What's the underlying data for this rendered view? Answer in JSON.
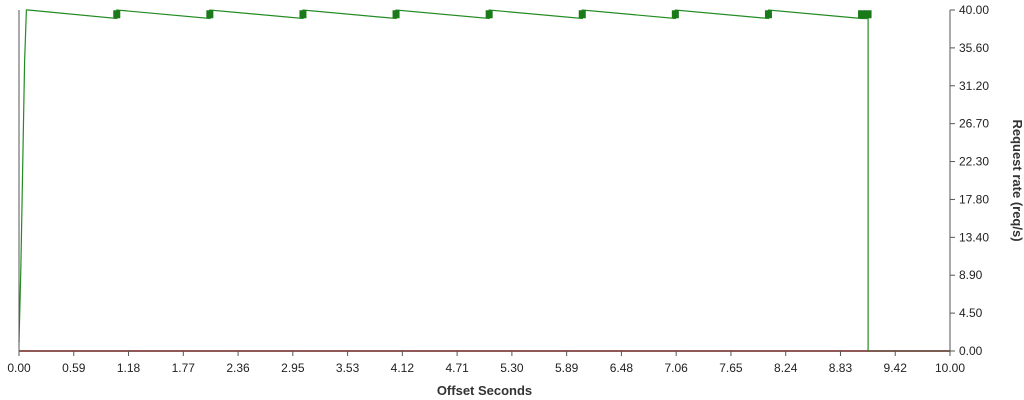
{
  "chart_data": {
    "type": "line",
    "title": "",
    "xlabel": "Offset Seconds",
    "ylabel": "Request rate (req/s)",
    "xlim": [
      0,
      10
    ],
    "ylim": [
      0,
      40
    ],
    "x_ticks": [
      "0.00",
      "0.59",
      "1.18",
      "1.77",
      "2.36",
      "2.95",
      "3.53",
      "4.12",
      "4.71",
      "5.30",
      "5.89",
      "6.48",
      "7.06",
      "7.65",
      "8.24",
      "8.83",
      "9.42",
      "10.00"
    ],
    "y_ticks": [
      "0.00",
      "4.50",
      "8.90",
      "13.40",
      "17.80",
      "22.30",
      "26.70",
      "31.20",
      "35.60",
      "40.00"
    ],
    "grid": false,
    "series": [
      {
        "color": "#228b22",
        "marker_color": "#1a7a1a",
        "x": [
          0.0,
          0.02,
          0.06,
          0.08,
          0.1,
          1.05,
          1.05,
          2.05,
          2.05,
          3.05,
          3.05,
          4.05,
          4.05,
          5.05,
          5.05,
          6.05,
          6.05,
          7.05,
          7.05,
          8.05,
          8.05,
          9.05,
          9.12,
          9.12,
          10.0
        ],
        "y": [
          1.0,
          10.0,
          34.0,
          40.0,
          40.0,
          39.0,
          40.0,
          39.0,
          40.0,
          39.0,
          40.0,
          39.0,
          40.0,
          39.0,
          40.0,
          39.0,
          40.0,
          39.0,
          40.0,
          39.0,
          40.0,
          39.0,
          39.0,
          0.0,
          0.0
        ],
        "markers_x": [
          1.05,
          2.05,
          3.05,
          4.05,
          5.05,
          6.05,
          7.05,
          8.05,
          9.05,
          9.12
        ],
        "markers_y": [
          39.5,
          39.5,
          39.5,
          39.5,
          39.5,
          39.5,
          39.5,
          39.5,
          39.5,
          39.5
        ]
      },
      {
        "color": "#cd5c5c",
        "x": [
          0.0,
          10.0
        ],
        "y": [
          0.0,
          0.0
        ]
      }
    ]
  }
}
